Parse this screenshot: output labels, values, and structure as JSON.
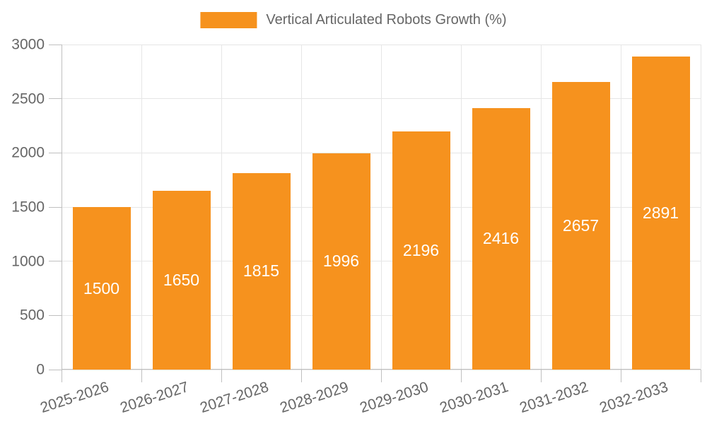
{
  "legend": {
    "label": "Vertical Articulated Robots Growth (%)"
  },
  "chart_data": {
    "type": "bar",
    "title": "Vertical Articulated Robots Growth (%)",
    "categories": [
      "2025-2026",
      "2026-2027",
      "2027-2028",
      "2028-2029",
      "2029-2030",
      "2030-2031",
      "2031-2032",
      "2032-2033"
    ],
    "values": [
      1500,
      1650,
      1815,
      1996,
      2196,
      2416,
      2657,
      2891
    ],
    "value_labels_shown": true,
    "xlabel": "",
    "ylabel": "",
    "ylim": [
      0,
      3000
    ],
    "yticks": [
      0,
      500,
      1000,
      1500,
      2000,
      2500,
      3000
    ],
    "grid": true,
    "legend_position": "top-center",
    "x_label_rotation_deg": -18,
    "colors": {
      "bar": "#F6921E",
      "value_label": "#FFFFFF",
      "axis_text": "#666666",
      "gridline": "#E6E6E6",
      "axis_line": "#C0C0C0"
    }
  }
}
